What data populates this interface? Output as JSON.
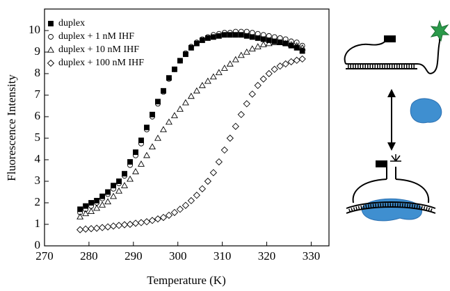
{
  "chart_data": {
    "type": "scatter",
    "x_label": "Temperature (K)",
    "y_label": "Fluorescence Intensity",
    "xlim": [
      270,
      334
    ],
    "ylim": [
      0,
      11
    ],
    "xticks": [
      270,
      280,
      290,
      300,
      310,
      320,
      330
    ],
    "yticks": [
      0,
      1,
      2,
      3,
      4,
      5,
      6,
      7,
      8,
      9,
      10
    ],
    "legend": "upper-left",
    "x": [
      278,
      279.25,
      280.5,
      281.75,
      283,
      284.25,
      285.5,
      286.75,
      288,
      289.25,
      290.5,
      291.75,
      293,
      294.25,
      295.5,
      296.75,
      298,
      299.25,
      300.5,
      301.75,
      303,
      304.25,
      305.5,
      306.75,
      308,
      309.25,
      310.5,
      311.75,
      313,
      314.25,
      315.5,
      316.75,
      318,
      319.25,
      320.5,
      321.75,
      323,
      324.25,
      325.5,
      326.75,
      328
    ],
    "series": [
      {
        "name": "duplex",
        "color": "#000000",
        "marker": "square-filled",
        "values": [
          1.7,
          1.85,
          2.0,
          2.1,
          2.3,
          2.5,
          2.8,
          3.0,
          3.35,
          3.9,
          4.35,
          4.9,
          5.5,
          6.1,
          6.7,
          7.2,
          7.8,
          8.2,
          8.6,
          8.9,
          9.2,
          9.4,
          9.55,
          9.65,
          9.7,
          9.75,
          9.8,
          9.8,
          9.8,
          9.8,
          9.75,
          9.7,
          9.65,
          9.6,
          9.55,
          9.5,
          9.45,
          9.4,
          9.3,
          9.2,
          9.05
        ]
      },
      {
        "name": "duplex + 1 nM IHF",
        "color": "#000000",
        "marker": "circle",
        "values": [
          1.55,
          1.7,
          1.85,
          2.0,
          2.2,
          2.4,
          2.65,
          2.9,
          3.25,
          3.75,
          4.2,
          4.75,
          5.4,
          6.0,
          6.6,
          7.15,
          7.75,
          8.2,
          8.6,
          8.95,
          9.25,
          9.45,
          9.6,
          9.7,
          9.8,
          9.85,
          9.9,
          9.9,
          9.95,
          9.95,
          9.95,
          9.9,
          9.85,
          9.8,
          9.75,
          9.7,
          9.65,
          9.6,
          9.5,
          9.45,
          9.3
        ]
      },
      {
        "name": "duplex + 10 nM IHF",
        "color": "#000000",
        "marker": "triangle",
        "values": [
          1.35,
          1.5,
          1.6,
          1.75,
          1.9,
          2.05,
          2.3,
          2.55,
          2.8,
          3.1,
          3.45,
          3.8,
          4.2,
          4.6,
          5.0,
          5.4,
          5.75,
          6.05,
          6.35,
          6.65,
          6.95,
          7.2,
          7.45,
          7.65,
          7.85,
          8.05,
          8.25,
          8.45,
          8.65,
          8.85,
          9.0,
          9.15,
          9.25,
          9.35,
          9.4,
          9.45,
          9.45,
          9.4,
          9.35,
          9.3,
          9.2
        ]
      },
      {
        "name": "duplex + 100 nM IHF",
        "color": "#000000",
        "marker": "diamond",
        "values": [
          0.75,
          0.78,
          0.8,
          0.82,
          0.85,
          0.88,
          0.92,
          0.95,
          0.98,
          1.0,
          1.05,
          1.08,
          1.12,
          1.18,
          1.25,
          1.32,
          1.42,
          1.55,
          1.7,
          1.88,
          2.1,
          2.35,
          2.65,
          3.0,
          3.4,
          3.9,
          4.45,
          5.0,
          5.55,
          6.1,
          6.6,
          7.05,
          7.45,
          7.75,
          8.0,
          8.2,
          8.35,
          8.45,
          8.55,
          8.62,
          8.68
        ]
      }
    ]
  }
}
